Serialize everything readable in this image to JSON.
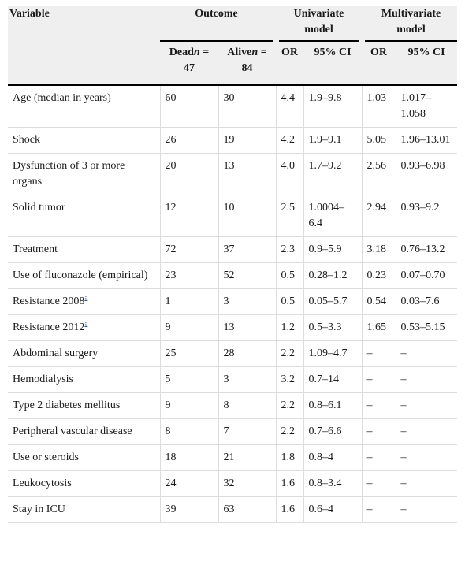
{
  "header": {
    "variable": "Variable",
    "outcome": "Outcome",
    "univariate_line1": "Univariate",
    "univariate_line2": "model",
    "multivariate_line1": "Multivariate",
    "multivariate_line2": "model",
    "dead_label": "Dead",
    "dead_n": "n",
    "dead_count": " = 47",
    "alive_label": "Alive",
    "alive_n": "n",
    "alive_count": " = 84",
    "or_uni": "OR",
    "ci_uni": "95% CI",
    "or_multi": "OR",
    "ci_multi": "95% CI"
  },
  "rows": [
    {
      "variable": "Age (median in years)",
      "dead": "60",
      "alive": "30",
      "or_u": "4.4",
      "ci_u": "1.9–9.8",
      "or_m": "1.03",
      "ci_m": "1.017–1.058",
      "note": ""
    },
    {
      "variable": "Shock",
      "dead": "26",
      "alive": "19",
      "or_u": "4.2",
      "ci_u": "1.9–9.1",
      "or_m": "5.05",
      "ci_m": "1.96–13.01",
      "note": ""
    },
    {
      "variable": "Dysfunction of 3 or more organs",
      "dead": "20",
      "alive": "13",
      "or_u": "4.0",
      "ci_u": "1.7–9.2",
      "or_m": "2.56",
      "ci_m": "0.93–6.98",
      "note": ""
    },
    {
      "variable": "Solid tumor",
      "dead": "12",
      "alive": "10",
      "or_u": "2.5",
      "ci_u": "1.0004–6.4",
      "or_m": "2.94",
      "ci_m": "0.93–9.2",
      "note": ""
    },
    {
      "variable": "Treatment",
      "dead": "72",
      "alive": "37",
      "or_u": "2.3",
      "ci_u": "0.9–5.9",
      "or_m": "3.18",
      "ci_m": "0.76–13.2",
      "note": ""
    },
    {
      "variable": "Use of fluconazole (empirical)",
      "dead": "23",
      "alive": "52",
      "or_u": "0.5",
      "ci_u": "0.28–1.2",
      "or_m": "0.23",
      "ci_m": "0.07–0.70",
      "note": ""
    },
    {
      "variable": "Resistance 2008",
      "dead": "1",
      "alive": "3",
      "or_u": "0.5",
      "ci_u": "0.05–5.7",
      "or_m": "0.54",
      "ci_m": "0.03–7.6",
      "note": "a"
    },
    {
      "variable": "Resistance 2012",
      "dead": "9",
      "alive": "13",
      "or_u": "1.2",
      "ci_u": "0.5–3.3",
      "or_m": "1.65",
      "ci_m": "0.53–5.15",
      "note": "a"
    },
    {
      "variable": "Abdominal surgery",
      "dead": "25",
      "alive": "28",
      "or_u": "2.2",
      "ci_u": "1.09–4.7",
      "or_m": "–",
      "ci_m": "–",
      "note": ""
    },
    {
      "variable": "Hemodialysis",
      "dead": "5",
      "alive": "3",
      "or_u": "3.2",
      "ci_u": "0.7–14",
      "or_m": "–",
      "ci_m": "–",
      "note": ""
    },
    {
      "variable": "Type 2 diabetes mellitus",
      "dead": "9",
      "alive": "8",
      "or_u": "2.2",
      "ci_u": "0.8–6.1",
      "or_m": "–",
      "ci_m": "–",
      "note": ""
    },
    {
      "variable": "Peripheral vascular disease",
      "dead": "8",
      "alive": "7",
      "or_u": "2.2",
      "ci_u": "0.7–6.6",
      "or_m": "–",
      "ci_m": "–",
      "note": ""
    },
    {
      "variable": "Use or steroids",
      "dead": "18",
      "alive": "21",
      "or_u": "1.8",
      "ci_u": "0.8–4",
      "or_m": "–",
      "ci_m": "–",
      "note": ""
    },
    {
      "variable": "Leukocytosis",
      "dead": "24",
      "alive": "32",
      "or_u": "1.6",
      "ci_u": "0.8–3.4",
      "or_m": "–",
      "ci_m": "–",
      "note": ""
    },
    {
      "variable": "Stay in ICU",
      "dead": "39",
      "alive": "63",
      "or_u": "1.6",
      "ci_u": "0.6–4",
      "or_m": "–",
      "ci_m": "–",
      "note": ""
    }
  ]
}
